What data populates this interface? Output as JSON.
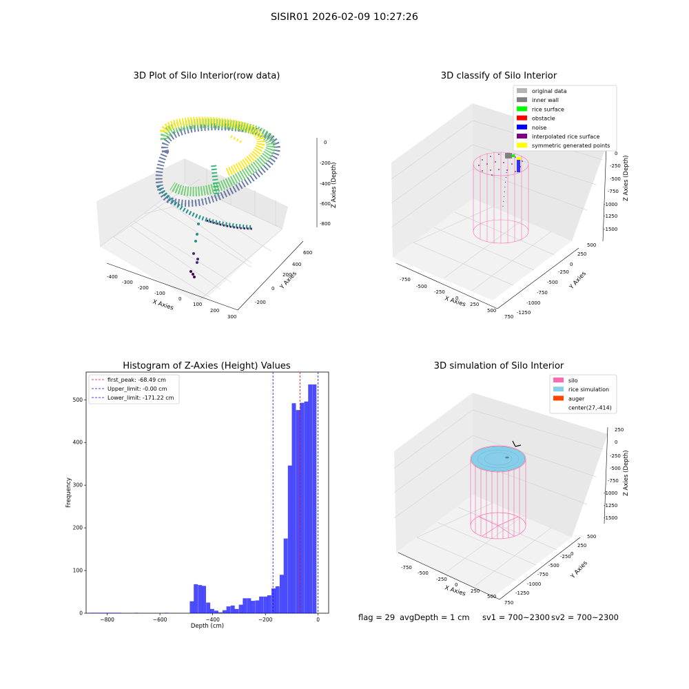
{
  "figure": {
    "suptitle": "SISIR01 2026-02-09 10:27:26",
    "footer": {
      "flag": "flag = 29",
      "avg_depth": "avgDepth = 1 cm",
      "sv1": "sv1 = 700~2300",
      "sv2": "sv2 = 700~2300"
    }
  },
  "panels": {
    "raw": {
      "title": "3D Plot of Silo Interior(row data)",
      "xlabel": "X Axies",
      "ylabel": "Y Axies",
      "zlabel": "Z Axies (Depth)",
      "xticks": [
        "-400",
        "-300",
        "-200",
        "-100",
        "0",
        "100",
        "200",
        "300"
      ],
      "yticks": [
        "-200",
        "0",
        "200",
        "400",
        "600"
      ],
      "zticks": [
        "0",
        "-200",
        "-400",
        "-600",
        "-800"
      ]
    },
    "classify": {
      "title": "3D classify of Silo Interior",
      "xlabel": "X Axies",
      "ylabel": "Y Axies",
      "zlabel": "Z Axies (Depth)",
      "xticks": [
        "-750",
        "-500",
        "-250",
        "0",
        "250",
        "500",
        "750"
      ],
      "yticks": [
        "-1250",
        "-1000",
        "-750",
        "-500",
        "-250",
        "0",
        "250",
        "500"
      ],
      "zticks": [
        "0",
        "-250",
        "-500",
        "-750",
        "-1000",
        "-1250",
        "-1500"
      ],
      "legend": [
        {
          "label": "original data",
          "color": "#b4b4b4"
        },
        {
          "label": "inner wall",
          "color": "#808080"
        },
        {
          "label": "rice surface",
          "color": "#00ff00"
        },
        {
          "label": "obstacle",
          "color": "#ff0000"
        },
        {
          "label": "noise",
          "color": "#0000ff"
        },
        {
          "label": "interpolated rice surface",
          "color": "#800080"
        },
        {
          "label": "symmetric generated points",
          "color": "#ffff00"
        }
      ]
    },
    "simulation": {
      "title": "3D simulation of Silo Interior",
      "xlabel": "X Axies",
      "ylabel": "Y Axies",
      "zlabel": "Z Axies (Depth)",
      "xticks": [
        "-750",
        "-500",
        "-250",
        "0",
        "250",
        "500",
        "750"
      ],
      "yticks": [
        "-1250",
        "-1000",
        "-750",
        "-500",
        "-250",
        "0",
        "250",
        "500"
      ],
      "zticks": [
        "250",
        "0",
        "-250",
        "-500",
        "-750",
        "-1000",
        "-1250",
        "-1500"
      ],
      "legend": [
        {
          "label": "silo",
          "color": "#ff69b4"
        },
        {
          "label": "rice simulation",
          "color": "#87ceeb"
        },
        {
          "label": "auger",
          "color": "#ff4500"
        },
        {
          "label": "center(27,-414)",
          "color": ""
        }
      ]
    }
  },
  "chart_data": {
    "type": "bar",
    "title": "Histogram of Z-Axies (Height) Values",
    "xlabel": "Depth (cm)",
    "ylabel": "Frequency",
    "xlim": [
      -880,
      40
    ],
    "ylim": [
      0,
      565
    ],
    "xticks": [
      -800,
      -600,
      -400,
      -200,
      0
    ],
    "yticks": [
      0,
      100,
      200,
      300,
      400,
      500
    ],
    "bar_color": "#0000ff",
    "bar_alpha": 0.7,
    "bin_width": 15.5,
    "bins": [
      {
        "x": -860,
        "v": 1
      },
      {
        "x": -845,
        "v": 1
      },
      {
        "x": -830,
        "v": 1
      },
      {
        "x": -815,
        "v": 1
      },
      {
        "x": -800,
        "v": 1
      },
      {
        "x": -785,
        "v": 1
      },
      {
        "x": -770,
        "v": 1
      },
      {
        "x": -755,
        "v": 1
      },
      {
        "x": -690,
        "v": 1
      },
      {
        "x": -575,
        "v": 1
      },
      {
        "x": -479,
        "v": 28
      },
      {
        "x": -464,
        "v": 68
      },
      {
        "x": -448,
        "v": 66
      },
      {
        "x": -433,
        "v": 64
      },
      {
        "x": -417,
        "v": 25
      },
      {
        "x": -402,
        "v": 10
      },
      {
        "x": -386,
        "v": 6
      },
      {
        "x": -371,
        "v": 2
      },
      {
        "x": -355,
        "v": 7
      },
      {
        "x": -340,
        "v": 16
      },
      {
        "x": -324,
        "v": 18
      },
      {
        "x": -309,
        "v": 10
      },
      {
        "x": -293,
        "v": 20
      },
      {
        "x": -278,
        "v": 35
      },
      {
        "x": -262,
        "v": 35
      },
      {
        "x": -247,
        "v": 29
      },
      {
        "x": -231,
        "v": 30
      },
      {
        "x": -216,
        "v": 39
      },
      {
        "x": -200,
        "v": 39
      },
      {
        "x": -185,
        "v": 42
      },
      {
        "x": -169,
        "v": 58
      },
      {
        "x": -154,
        "v": 63
      },
      {
        "x": -138,
        "v": 90
      },
      {
        "x": -123,
        "v": 175
      },
      {
        "x": -107,
        "v": 346
      },
      {
        "x": -92,
        "v": 492
      },
      {
        "x": -76,
        "v": 476
      },
      {
        "x": -61,
        "v": 493
      },
      {
        "x": -45,
        "v": 496
      },
      {
        "x": -30,
        "v": 536
      },
      {
        "x": -14,
        "v": 536
      }
    ],
    "vlines": [
      {
        "label": "first_peak: -68.49 cm",
        "x": -68.49,
        "color": "#ff0000"
      },
      {
        "label": "Upper_limit: -0.00 cm",
        "x": 0,
        "color": "#0000ff"
      },
      {
        "label": "Lower_limit: -171.22 cm",
        "x": -171.22,
        "color": "#0000ff"
      }
    ]
  }
}
